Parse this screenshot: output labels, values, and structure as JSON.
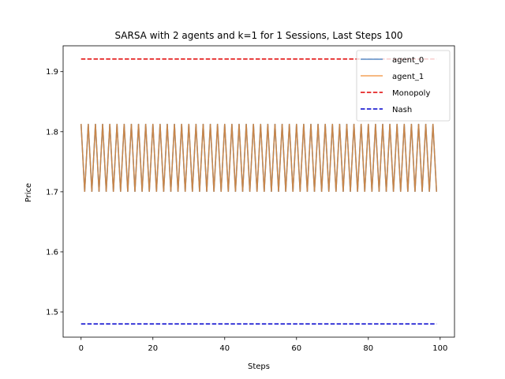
{
  "chart_data": {
    "type": "line",
    "title": "SARSA with 2 agents and k=1 for 1 Sessions, Last Steps 100",
    "xlabel": "Steps",
    "ylabel": "Price",
    "xlim": [
      -5,
      104
    ],
    "ylim": [
      1.458,
      1.943
    ],
    "xticks": [
      0,
      20,
      40,
      60,
      80,
      100
    ],
    "yticks": [
      1.5,
      1.6,
      1.7,
      1.8,
      1.9
    ],
    "xtick_labels": [
      "0",
      "20",
      "40",
      "60",
      "80",
      "100"
    ],
    "ytick_labels": [
      "1.5",
      "1.6",
      "1.7",
      "1.8",
      "1.9"
    ],
    "grid": false,
    "legend_position": "top-right",
    "series": [
      {
        "name": "agent_0",
        "color": "#5b8fc9",
        "style": "solid",
        "pattern": {
          "x_start": 0,
          "x_end": 99,
          "even_value": 1.813,
          "odd_value": 1.7
        }
      },
      {
        "name": "agent_1",
        "color": "#f4a259",
        "style": "solid",
        "pattern": {
          "x_start": 0,
          "x_end": 99,
          "even_value": 1.813,
          "odd_value": 1.7
        }
      },
      {
        "name": "Monopoly",
        "color": "#e00000",
        "style": "dashed",
        "x": [
          0,
          99
        ],
        "values": [
          1.921,
          1.921
        ]
      },
      {
        "name": "Nash",
        "color": "#0000cc",
        "style": "dashed",
        "x": [
          0,
          99
        ],
        "values": [
          1.48,
          1.48
        ]
      }
    ],
    "overlap_color": "#c8864a"
  }
}
